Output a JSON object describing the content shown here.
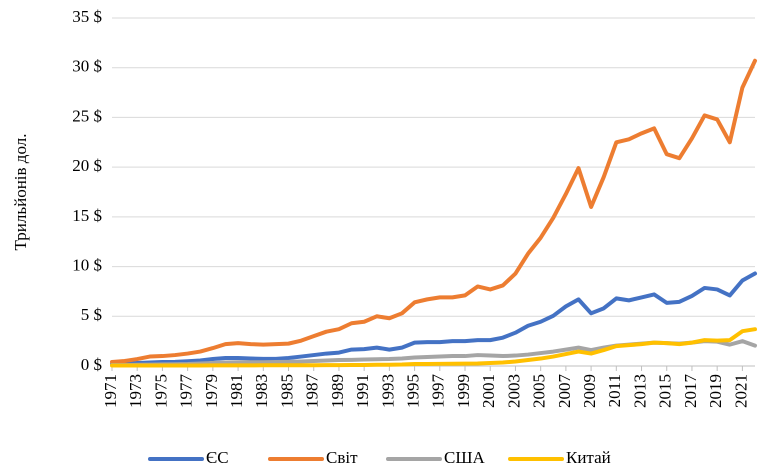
{
  "chart_data": {
    "type": "line",
    "y_label": "Трильйонів дол.",
    "x": [
      1971,
      1972,
      1973,
      1974,
      1975,
      1976,
      1977,
      1978,
      1979,
      1980,
      1981,
      1982,
      1983,
      1984,
      1985,
      1986,
      1987,
      1988,
      1989,
      1990,
      1991,
      1992,
      1993,
      1994,
      1995,
      1996,
      1997,
      1998,
      1999,
      2000,
      2001,
      2002,
      2003,
      2004,
      2005,
      2006,
      2007,
      2008,
      2009,
      2010,
      2011,
      2012,
      2013,
      2014,
      2015,
      2016,
      2017,
      2018,
      2019,
      2020,
      2021,
      2022
    ],
    "xlim": [
      1971,
      2022
    ],
    "xticks": [
      1971,
      1973,
      1975,
      1977,
      1979,
      1981,
      1983,
      1985,
      1987,
      1989,
      1991,
      1993,
      1995,
      1997,
      1999,
      2001,
      2003,
      2005,
      2007,
      2009,
      2011,
      2013,
      2015,
      2017,
      2019,
      2021
    ],
    "ylim": [
      0,
      35
    ],
    "yticks": [
      {
        "value": 0,
        "label": "0 $"
      },
      {
        "value": 5,
        "label": "5 $"
      },
      {
        "value": 10,
        "label": "10 $"
      },
      {
        "value": 15,
        "label": "15 $"
      },
      {
        "value": 20,
        "label": "20 $"
      },
      {
        "value": 25,
        "label": "25 $"
      },
      {
        "value": 30,
        "label": "30 $"
      },
      {
        "value": 35,
        "label": "35 $"
      }
    ],
    "grid": true,
    "legend": "bottom",
    "series": [
      {
        "name": "ЄС",
        "color": "#4472c4",
        "values": [
          0.2,
          0.25,
          0.3,
          0.35,
          0.4,
          0.42,
          0.48,
          0.55,
          0.7,
          0.8,
          0.8,
          0.75,
          0.72,
          0.72,
          0.8,
          0.95,
          1.1,
          1.25,
          1.35,
          1.65,
          1.7,
          1.85,
          1.65,
          1.85,
          2.35,
          2.4,
          2.4,
          2.5,
          2.5,
          2.6,
          2.6,
          2.85,
          3.35,
          4.05,
          4.45,
          5.05,
          6.0,
          6.7,
          5.3,
          5.8,
          6.8,
          6.6,
          6.9,
          7.2,
          6.35,
          6.45,
          7.05,
          7.85,
          7.7,
          7.1,
          8.6,
          9.3
        ]
      },
      {
        "name": "Світ",
        "color": "#ed7d31",
        "values": [
          0.4,
          0.5,
          0.7,
          0.95,
          1.0,
          1.1,
          1.25,
          1.45,
          1.8,
          2.2,
          2.3,
          2.2,
          2.15,
          2.2,
          2.25,
          2.55,
          3.0,
          3.45,
          3.7,
          4.3,
          4.45,
          5.0,
          4.8,
          5.3,
          6.4,
          6.7,
          6.9,
          6.9,
          7.1,
          8.0,
          7.7,
          8.1,
          9.3,
          11.3,
          12.9,
          14.9,
          17.3,
          19.9,
          16.0,
          19.0,
          22.5,
          22.8,
          23.4,
          23.9,
          21.3,
          20.9,
          22.9,
          25.2,
          24.8,
          22.5,
          28.0,
          30.7
        ]
      },
      {
        "name": "США",
        "color": "#a5a5a5",
        "values": [
          0.1,
          0.1,
          0.12,
          0.14,
          0.16,
          0.18,
          0.2,
          0.25,
          0.3,
          0.35,
          0.38,
          0.38,
          0.38,
          0.4,
          0.42,
          0.45,
          0.5,
          0.55,
          0.6,
          0.62,
          0.65,
          0.68,
          0.7,
          0.75,
          0.85,
          0.9,
          0.95,
          1.0,
          1.0,
          1.1,
          1.05,
          1.0,
          1.05,
          1.15,
          1.3,
          1.45,
          1.65,
          1.85,
          1.6,
          1.85,
          2.05,
          2.15,
          2.25,
          2.35,
          2.3,
          2.25,
          2.35,
          2.5,
          2.45,
          2.15,
          2.5,
          2.05
        ]
      },
      {
        "name": "Китай",
        "color": "#ffc000",
        "values": [
          0.05,
          0.05,
          0.05,
          0.05,
          0.05,
          0.05,
          0.05,
          0.05,
          0.06,
          0.06,
          0.06,
          0.06,
          0.07,
          0.07,
          0.08,
          0.08,
          0.08,
          0.09,
          0.09,
          0.1,
          0.1,
          0.12,
          0.13,
          0.15,
          0.2,
          0.2,
          0.22,
          0.23,
          0.24,
          0.25,
          0.3,
          0.35,
          0.45,
          0.6,
          0.75,
          0.95,
          1.2,
          1.45,
          1.25,
          1.6,
          2.0,
          2.1,
          2.2,
          2.35,
          2.3,
          2.2,
          2.35,
          2.6,
          2.55,
          2.6,
          3.5,
          3.7
        ]
      }
    ]
  }
}
